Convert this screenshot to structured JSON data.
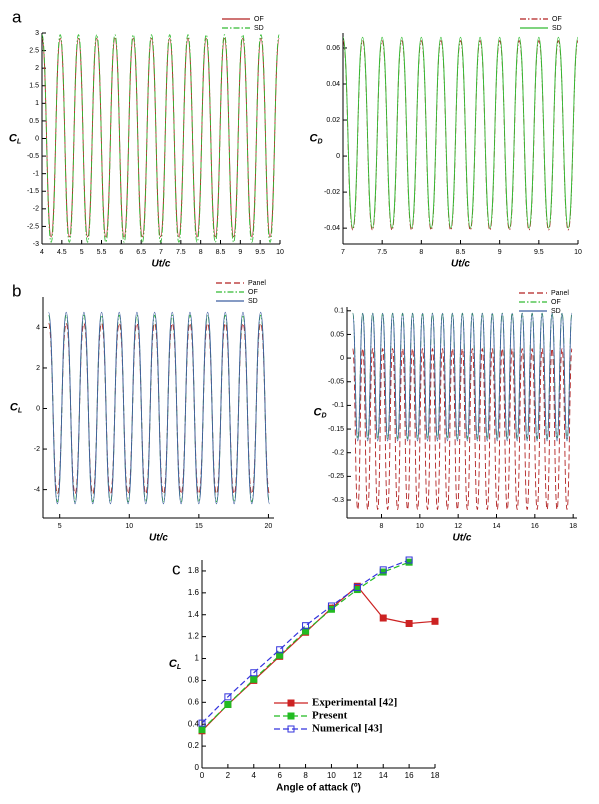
{
  "chart_data": [
    {
      "type": "line",
      "panel_label": "a",
      "xlabel": "Ut/c",
      "ylabel": "C",
      "ylabel_sub": "L",
      "xlim": [
        4,
        10
      ],
      "xticks": [
        4,
        4.5,
        5,
        5.5,
        6,
        6.5,
        7,
        7.5,
        8,
        8.5,
        9,
        9.5,
        10
      ],
      "ylim": [
        -3,
        3
      ],
      "yticks": [
        -3,
        -2.5,
        -2,
        -1.5,
        -1,
        -0.5,
        0,
        0.5,
        1,
        1.5,
        2,
        2.5,
        3
      ],
      "legend": "top-right",
      "x": [
        4,
        4.23,
        4.46,
        4.69,
        4.92,
        5.15,
        5.38,
        5.61,
        5.84,
        6.07,
        6.3,
        6.53,
        6.76,
        6.99,
        7.22,
        7.45,
        7.68,
        7.91,
        8.14,
        8.37,
        8.6,
        8.83,
        9.06,
        9.29,
        9.52,
        9.75,
        9.98
      ],
      "series": [
        {
          "name": "OF",
          "color": "#b22222",
          "linestyle": "solid",
          "values": [
            2.85,
            -2.8,
            2.85,
            -2.8,
            2.85,
            -2.8,
            2.85,
            -2.8,
            2.85,
            -2.8,
            2.85,
            -2.8,
            2.85,
            -2.8,
            2.85,
            -2.8,
            2.85,
            -2.8,
            2.85,
            -2.8,
            2.85,
            -2.8,
            2.85,
            -2.8,
            2.85,
            -2.8,
            2.85
          ]
        },
        {
          "name": "SD",
          "color": "#33bb33",
          "linestyle": "dashdot",
          "values": [
            2.95,
            -2.95,
            2.95,
            -2.95,
            2.95,
            -2.95,
            2.95,
            -2.95,
            2.95,
            -2.95,
            2.95,
            -2.95,
            2.95,
            -2.95,
            2.95,
            -2.95,
            2.95,
            -2.95,
            2.95,
            -2.95,
            2.95,
            -2.95,
            2.95,
            -2.95,
            2.95,
            -2.95,
            2.95
          ]
        }
      ]
    },
    {
      "type": "line",
      "xlabel": "Ut/c",
      "ylabel": "C",
      "ylabel_sub": "D",
      "xlim": [
        7,
        10
      ],
      "xticks": [
        7,
        7.5,
        8,
        8.5,
        9,
        9.5,
        10
      ],
      "ylim": [
        -0.0488,
        0.0683
      ],
      "yticks": [
        -0.04,
        -0.02,
        0,
        0.02,
        0.04,
        0.06
      ],
      "legend": "top-right",
      "x": [
        7,
        7.125,
        7.25,
        7.375,
        7.5,
        7.625,
        7.75,
        7.875,
        8,
        8.125,
        8.25,
        8.375,
        8.5,
        8.625,
        8.75,
        8.875,
        9,
        9.125,
        9.25,
        9.375,
        9.5,
        9.625,
        9.75,
        9.875,
        10
      ],
      "series": [
        {
          "name": "OF",
          "color": "#b22222",
          "linestyle": "dashdot",
          "values": [
            0.064,
            -0.041,
            0.064,
            -0.041,
            0.064,
            -0.041,
            0.064,
            -0.041,
            0.064,
            -0.041,
            0.064,
            -0.041,
            0.064,
            -0.041,
            0.064,
            -0.041,
            0.064,
            -0.041,
            0.064,
            -0.041,
            0.064,
            -0.041,
            0.064,
            -0.041,
            0.064
          ]
        },
        {
          "name": "SD",
          "color": "#33bb33",
          "linestyle": "solid",
          "values": [
            0.066,
            -0.04,
            0.066,
            -0.04,
            0.066,
            -0.04,
            0.066,
            -0.04,
            0.066,
            -0.04,
            0.066,
            -0.04,
            0.066,
            -0.04,
            0.066,
            -0.04,
            0.066,
            -0.04,
            0.066,
            -0.04,
            0.066,
            -0.04,
            0.066,
            -0.04,
            0.066
          ]
        }
      ]
    },
    {
      "type": "line",
      "panel_label": "b",
      "xlabel": "Ut/c",
      "ylabel": "C",
      "ylabel_sub": "L",
      "xlim": [
        3.8,
        20.4
      ],
      "xticks": [
        5,
        10,
        15,
        20
      ],
      "ylim": [
        -5.4,
        5.5
      ],
      "yticks": [
        -4,
        -2,
        0,
        2,
        4
      ],
      "legend": "top-right",
      "x": [
        4.2,
        4.835,
        5.47,
        6.105,
        6.74,
        7.375,
        8.01,
        8.645,
        9.28,
        9.915,
        10.55,
        11.185,
        11.82,
        12.455,
        13.09,
        13.725,
        14.36,
        14.995,
        15.63,
        16.265,
        16.9,
        17.535,
        18.17,
        18.805,
        19.44,
        20.075
      ],
      "series": [
        {
          "name": "Panel",
          "color": "#b22222",
          "linestyle": "dashed",
          "values": [
            4.2,
            -4.2,
            4.2,
            -4.2,
            4.2,
            -4.2,
            4.2,
            -4.2,
            4.2,
            -4.2,
            4.2,
            -4.2,
            4.2,
            -4.2,
            4.2,
            -4.2,
            4.2,
            -4.2,
            4.2,
            -4.2,
            4.2,
            -4.2,
            4.2,
            -4.2,
            4.2,
            -4.2
          ]
        },
        {
          "name": "OF",
          "color": "#33bb33",
          "linestyle": "dashdot",
          "values": [
            4.6,
            -4.6,
            4.6,
            -4.6,
            4.6,
            -4.6,
            4.6,
            -4.6,
            4.6,
            -4.6,
            4.6,
            -4.6,
            4.6,
            -4.6,
            4.6,
            -4.6,
            4.6,
            -4.6,
            4.6,
            -4.6,
            4.6,
            -4.6,
            4.6,
            -4.6,
            4.6,
            -4.6
          ]
        },
        {
          "name": "SD",
          "color": "#3f5fa0",
          "linestyle": "solid",
          "values": [
            4.75,
            -4.7,
            4.75,
            -4.7,
            4.75,
            -4.7,
            4.75,
            -4.7,
            4.75,
            -4.7,
            4.75,
            -4.7,
            4.75,
            -4.7,
            4.75,
            -4.7,
            4.75,
            -4.7,
            4.75,
            -4.7,
            4.75,
            -4.7,
            4.75,
            -4.7,
            4.75,
            -4.7
          ]
        }
      ]
    },
    {
      "type": "line",
      "xlabel": "Ut/c",
      "ylabel": "C",
      "ylabel_sub": "D",
      "xlim": [
        6.2,
        18.2
      ],
      "xticks": [
        8,
        10,
        12,
        14,
        16,
        18
      ],
      "ylim": [
        -0.338,
        0.108
      ],
      "yticks": [
        -0.3,
        -0.25,
        -0.2,
        -0.15,
        -0.1,
        -0.05,
        0,
        0.05,
        0.1
      ],
      "legend": "top-right",
      "x": [
        6.5,
        6.76,
        7.02,
        7.28,
        7.54,
        7.8,
        8.06,
        8.32,
        8.58,
        8.84,
        9.1,
        9.36,
        9.62,
        9.88,
        10.14,
        10.4,
        10.66,
        10.92,
        11.18,
        11.44,
        11.7,
        11.96,
        12.22,
        12.48,
        12.74,
        13,
        13.26,
        13.52,
        13.78,
        14.04,
        14.3,
        14.56,
        14.82,
        15.08,
        15.34,
        15.6,
        15.86,
        16.12,
        16.38,
        16.64,
        16.9,
        17.16,
        17.42,
        17.68,
        17.94
      ],
      "series": [
        {
          "name": "Panel",
          "color": "#b22222",
          "linestyle": "dashed",
          "values": [
            0.02,
            -0.32,
            0.02,
            -0.32,
            0.02,
            -0.32,
            0.02,
            -0.32,
            0.02,
            -0.32,
            0.02,
            -0.32,
            0.02,
            -0.32,
            0.02,
            -0.32,
            0.02,
            -0.32,
            0.02,
            -0.32,
            0.02,
            -0.32,
            0.02,
            -0.32,
            0.02,
            -0.32,
            0.02,
            -0.32,
            0.02,
            -0.32,
            0.02,
            -0.32,
            0.02,
            -0.32,
            0.02,
            -0.32,
            0.02,
            -0.32,
            0.02,
            -0.32,
            0.02,
            -0.32,
            0.02,
            -0.32,
            0.02
          ]
        },
        {
          "name": "OF",
          "color": "#33bb33",
          "linestyle": "dashdot",
          "values": [
            0.095,
            -0.17,
            0.095,
            -0.17,
            0.095,
            -0.17,
            0.095,
            -0.17,
            0.095,
            -0.17,
            0.095,
            -0.17,
            0.095,
            -0.17,
            0.095,
            -0.17,
            0.095,
            -0.17,
            0.095,
            -0.17,
            0.095,
            -0.17,
            0.095,
            -0.17,
            0.095,
            -0.17,
            0.095,
            -0.17,
            0.095,
            -0.17,
            0.095,
            -0.17,
            0.095,
            -0.17,
            0.095,
            -0.17,
            0.095,
            -0.17,
            0.095,
            -0.17,
            0.095,
            -0.17,
            0.095,
            -0.17,
            0.095
          ]
        },
        {
          "name": "SD",
          "color": "#3f5fa0",
          "linestyle": "solid",
          "values": [
            0.095,
            -0.175,
            0.095,
            -0.175,
            0.095,
            -0.175,
            0.095,
            -0.175,
            0.095,
            -0.175,
            0.095,
            -0.175,
            0.095,
            -0.175,
            0.095,
            -0.175,
            0.095,
            -0.175,
            0.095,
            -0.175,
            0.095,
            -0.175,
            0.095,
            -0.175,
            0.095,
            -0.175,
            0.095,
            -0.175,
            0.095,
            -0.175,
            0.095,
            -0.175,
            0.095,
            -0.175,
            0.095,
            -0.175,
            0.095,
            -0.175,
            0.095,
            -0.175,
            0.095,
            -0.175,
            0.095,
            -0.175,
            0.095
          ]
        }
      ]
    },
    {
      "type": "line",
      "panel_label": "c",
      "xlabel": "Angle of attack (º)",
      "ylabel": "C",
      "ylabel_sub": "L",
      "xlim": [
        0,
        18
      ],
      "xticks": [
        0,
        2,
        4,
        6,
        8,
        10,
        12,
        14,
        16,
        18
      ],
      "ylim": [
        0,
        1.9
      ],
      "yticks": [
        0,
        0.2,
        0.4,
        0.6,
        0.8,
        1,
        1.2,
        1.4,
        1.6,
        1.8
      ],
      "legend": "lower-right",
      "series": [
        {
          "name": "Experimental [42]",
          "color": "#cc2222",
          "linestyle": "solid",
          "marker": "square",
          "marker_fill": true,
          "x": [
            0,
            2,
            4,
            6,
            8,
            10,
            12,
            14,
            16,
            18
          ],
          "values": [
            0.34,
            0.58,
            0.8,
            1.02,
            1.24,
            1.46,
            1.66,
            1.37,
            1.32,
            1.34
          ]
        },
        {
          "name": "Present",
          "color": "#22bb22",
          "linestyle": "dashed",
          "marker": "square",
          "marker_fill": true,
          "x": [
            0,
            2,
            4,
            6,
            8,
            10,
            12,
            14,
            16
          ],
          "values": [
            0.35,
            0.58,
            0.81,
            1.03,
            1.25,
            1.45,
            1.63,
            1.79,
            1.88
          ]
        },
        {
          "name": "Numerical [43]",
          "color": "#3333dd",
          "linestyle": "dashed",
          "marker": "square",
          "marker_fill": false,
          "x": [
            0,
            2,
            4,
            6,
            8,
            10,
            12,
            14,
            16
          ],
          "values": [
            0.41,
            0.65,
            0.87,
            1.08,
            1.3,
            1.48,
            1.65,
            1.81,
            1.9
          ]
        }
      ]
    }
  ]
}
